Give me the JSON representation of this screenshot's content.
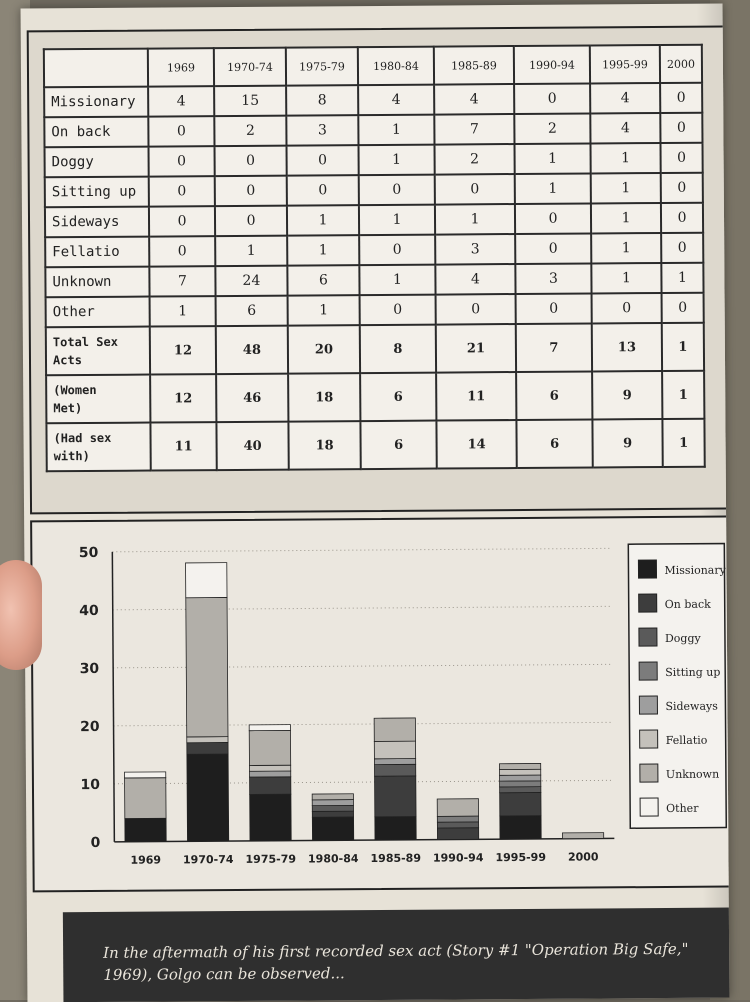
{
  "table": {
    "columns": [
      "1969",
      "1970-74",
      "1975-79",
      "1980-84",
      "1985-89",
      "1990-94",
      "1995-99",
      "2000"
    ],
    "header_row": [
      "4",
      "15",
      "8",
      "4",
      "4",
      "0",
      "4",
      "0"
    ],
    "rows": [
      {
        "label": "Missionary",
        "values": [
          "4",
          "15",
          "8",
          "4",
          "4",
          "0",
          "4",
          "0"
        ]
      },
      {
        "label": "On back",
        "values": [
          "0",
          "2",
          "3",
          "1",
          "7",
          "2",
          "4",
          "0"
        ]
      },
      {
        "label": "Doggy",
        "values": [
          "0",
          "0",
          "0",
          "1",
          "2",
          "1",
          "1",
          "0"
        ]
      },
      {
        "label": "Sitting up",
        "values": [
          "0",
          "0",
          "0",
          "0",
          "0",
          "1",
          "1",
          "0"
        ]
      },
      {
        "label": "Sideways",
        "values": [
          "0",
          "0",
          "1",
          "1",
          "1",
          "0",
          "1",
          "0"
        ]
      },
      {
        "label": "Fellatio",
        "values": [
          "0",
          "1",
          "1",
          "0",
          "3",
          "0",
          "1",
          "0"
        ]
      },
      {
        "label": "Unknown",
        "values": [
          "7",
          "24",
          "6",
          "1",
          "4",
          "3",
          "1",
          "1"
        ]
      },
      {
        "label": "Other",
        "values": [
          "1",
          "6",
          "1",
          "0",
          "0",
          "0",
          "0",
          "0"
        ]
      }
    ],
    "totals": [
      {
        "label_line1": "Total Sex",
        "label_line2": "Acts",
        "values": [
          "12",
          "48",
          "20",
          "8",
          "21",
          "7",
          "13",
          "1"
        ]
      },
      {
        "label_line1": "(Women",
        "label_line2": "Met)",
        "values": [
          "12",
          "46",
          "18",
          "6",
          "11",
          "6",
          "9",
          "1"
        ]
      },
      {
        "label_line1": "(Had sex",
        "label_line2": "with)",
        "values": [
          "11",
          "40",
          "18",
          "6",
          "14",
          "6",
          "9",
          "1"
        ]
      }
    ]
  },
  "chart_data": {
    "type": "bar",
    "stacked": true,
    "categories": [
      "1969",
      "1970-74",
      "1975-79",
      "1980-84",
      "1985-89",
      "1990-94",
      "1995-99",
      "2000"
    ],
    "series": [
      {
        "name": "Missionary",
        "values": [
          4,
          15,
          8,
          4,
          4,
          0,
          4,
          0
        ],
        "color": "#1e1e1e"
      },
      {
        "name": "On back",
        "values": [
          0,
          2,
          3,
          1,
          7,
          2,
          4,
          0
        ],
        "color": "#3d3d3d"
      },
      {
        "name": "Doggy",
        "values": [
          0,
          0,
          0,
          1,
          2,
          1,
          1,
          0
        ],
        "color": "#5a5a5a"
      },
      {
        "name": "Sitting up",
        "values": [
          0,
          0,
          0,
          0,
          0,
          1,
          1,
          0
        ],
        "color": "#7c7c7c"
      },
      {
        "name": "Sideways",
        "values": [
          0,
          0,
          1,
          1,
          1,
          0,
          1,
          0
        ],
        "color": "#9e9e9e"
      },
      {
        "name": "Fellatio",
        "values": [
          0,
          1,
          1,
          0,
          3,
          0,
          1,
          0
        ],
        "color": "#c4c1bb"
      },
      {
        "name": "Unknown",
        "values": [
          7,
          24,
          6,
          1,
          4,
          3,
          1,
          1
        ],
        "color": "#b2afa9"
      },
      {
        "name": "Other",
        "values": [
          1,
          6,
          1,
          0,
          0,
          0,
          0,
          0
        ],
        "color": "#f4f2ee"
      }
    ],
    "yticks": [
      "50",
      "40",
      "30",
      "20",
      "10",
      "0"
    ],
    "ylim": [
      0,
      50
    ],
    "grid": true,
    "legend_position": "right"
  },
  "caption": {
    "line1": "In the aftermath of his first recorded sex act (Story #1 \"Operation Big Safe,\"",
    "line2": "1969), Golgo can be observed..."
  }
}
